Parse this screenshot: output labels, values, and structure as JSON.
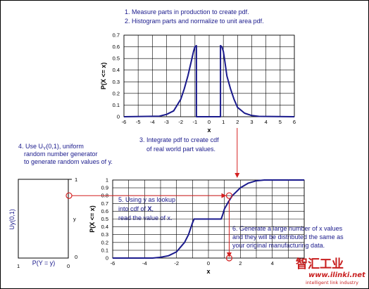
{
  "notes": {
    "step1": "1.  Measure parts in production to create pdf.",
    "step2": "2.  Histogram parts and normalize to unit area pdf.",
    "step3a": "3.  Integrate pdf to create cdf",
    "step3b": "of real world part values.",
    "step4_prefix": "4.  Use U",
    "step4_sub": "Y",
    "step4_suffix": "(0,1), uniform",
    "step4b": "random number generator",
    "step4c": "to generate random values of y.",
    "step5a": "5.  Using y as lookup",
    "step5b_prefix": "into cdf of ",
    "step5b_bold": "X",
    "step5b_suffix": ",",
    "step5c": "read the value of x.",
    "step6a": "6.  Generate a large number of x values",
    "step6b": "and they will be distributed the same as",
    "step6c": "your original manufacturing data."
  },
  "uniform_box": {
    "ylabel": "Uy(0,1)",
    "xlabel": "P(Y = y)",
    "y_label": "y",
    "tick_top": "1",
    "tick_bottom": "0",
    "tick_left": "1",
    "tick_right": "0"
  },
  "watermark": {
    "line1": "智汇工业",
    "line2": "www.ilinki.net",
    "line3": "intelligent link industry"
  },
  "colors": {
    "curve": "#1a1a8c",
    "text": "#1a1a8c",
    "arrow": "#d42020",
    "grid": "#000000"
  },
  "chart_data": [
    {
      "type": "line",
      "title": "",
      "xlabel": "x",
      "ylabel": "P(X <= x)",
      "xlim": [
        -6,
        6
      ],
      "ylim": [
        0,
        0.7
      ],
      "xticks": [
        -6,
        -5,
        -4,
        -3,
        -2,
        -1,
        0,
        1,
        2,
        3,
        4,
        5,
        6
      ],
      "yticks": [
        0,
        0.1,
        0.2,
        0.3,
        0.4,
        0.5,
        0.6,
        0.7
      ],
      "ytick_labels": [
        "0",
        "0.1",
        "0.2",
        "0.3",
        "0.4",
        "0.5",
        "0.6",
        "0.7"
      ],
      "grid": true,
      "series": [
        {
          "x": [
            -6,
            -3.5,
            -3,
            -2.5,
            -2,
            -1.75,
            -1.5,
            -1.25,
            -1.1,
            -1,
            -0.9,
            -0.9,
            0.8,
            0.8,
            0.9,
            1,
            1.1,
            1.25,
            1.5,
            1.75,
            2,
            2.5,
            3,
            3.5,
            6
          ],
          "y": [
            0,
            0.005,
            0.02,
            0.05,
            0.15,
            0.24,
            0.35,
            0.48,
            0.56,
            0.6,
            0.61,
            0,
            0,
            0.61,
            0.6,
            0.56,
            0.48,
            0.35,
            0.24,
            0.15,
            0.08,
            0.03,
            0.01,
            0.003,
            0
          ]
        }
      ]
    },
    {
      "type": "line",
      "title": "",
      "xlabel": "x",
      "ylabel": "P(X <= x)",
      "xlim": [
        -6,
        6
      ],
      "ylim": [
        0,
        1
      ],
      "xticks": [
        -6,
        -4,
        -2,
        0,
        2,
        4,
        6
      ],
      "yticks": [
        0,
        0.1,
        0.2,
        0.3,
        0.4,
        0.5,
        0.6,
        0.7,
        0.8,
        0.9,
        1
      ],
      "ytick_labels": [
        "0",
        "0.1",
        "0.2",
        "0.3",
        "0.4",
        "0.5",
        "0.6",
        "0.7",
        "0.8",
        "0.9",
        "1"
      ],
      "grid": true,
      "series": [
        {
          "x": [
            -6,
            -3.5,
            -3,
            -2.5,
            -2,
            -1.5,
            -1.25,
            -1,
            -0.9,
            0.8,
            0.9,
            1,
            1.25,
            1.5,
            2,
            2.5,
            3,
            3.5,
            6
          ],
          "y": [
            0,
            0,
            0.01,
            0.03,
            0.08,
            0.2,
            0.3,
            0.45,
            0.5,
            0.5,
            0.56,
            0.63,
            0.72,
            0.8,
            0.9,
            0.96,
            0.99,
            1,
            1
          ]
        }
      ],
      "lookup": {
        "y": 0.8,
        "x": 1.3
      }
    }
  ]
}
